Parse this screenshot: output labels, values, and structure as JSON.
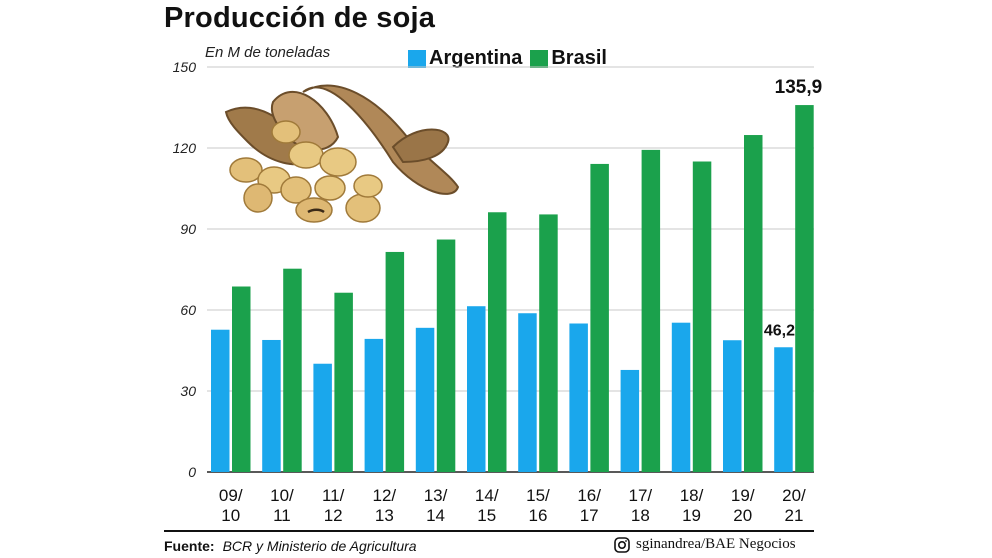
{
  "title": "Producción de soja",
  "unit_label": "En M de toneladas",
  "colors": {
    "argentina": "#1aa7ec",
    "brasil": "#1ba14c",
    "grid": "#c8c8c8"
  },
  "footer": {
    "source_label": "Fuente:",
    "source_text": "BCR y Ministerio de Agricultura",
    "credit_icon": "instagram-icon",
    "credit": "sginandrea/BAE Negocios"
  },
  "illustration": {
    "icon": "soybean-pods-icon"
  },
  "chart_data": {
    "type": "bar",
    "title": "Producción de soja",
    "ylabel": "En M de toneladas",
    "xlabel": "",
    "ylim": [
      0,
      150
    ],
    "yticks": [
      "0",
      "30",
      "60",
      "90",
      "120",
      "150"
    ],
    "grid": true,
    "legend_position": "top",
    "categories": [
      [
        "09/",
        "10"
      ],
      [
        "10/",
        "11"
      ],
      [
        "11/",
        "12"
      ],
      [
        "12/",
        "13"
      ],
      [
        "13/",
        "14"
      ],
      [
        "14/",
        "15"
      ],
      [
        "15/",
        "16"
      ],
      [
        "16/",
        "17"
      ],
      [
        "17/",
        "18"
      ],
      [
        "18/",
        "19"
      ],
      [
        "19/",
        "20"
      ],
      [
        "20/",
        "21"
      ]
    ],
    "series": [
      {
        "name": "Argentina",
        "color": "#1aa7ec",
        "values": [
          52.7,
          48.9,
          40.1,
          49.3,
          53.4,
          61.4,
          58.8,
          55.0,
          37.8,
          55.3,
          48.8,
          46.2
        ]
      },
      {
        "name": "Brasil",
        "color": "#1ba14c",
        "values": [
          68.7,
          75.3,
          66.4,
          81.5,
          86.1,
          96.2,
          95.4,
          114.1,
          119.3,
          115.0,
          124.8,
          135.9
        ]
      }
    ],
    "data_labels": [
      {
        "series": "Argentina",
        "index": 11,
        "text": "46,2"
      },
      {
        "series": "Brasil",
        "index": 11,
        "text": "135,9"
      }
    ]
  }
}
